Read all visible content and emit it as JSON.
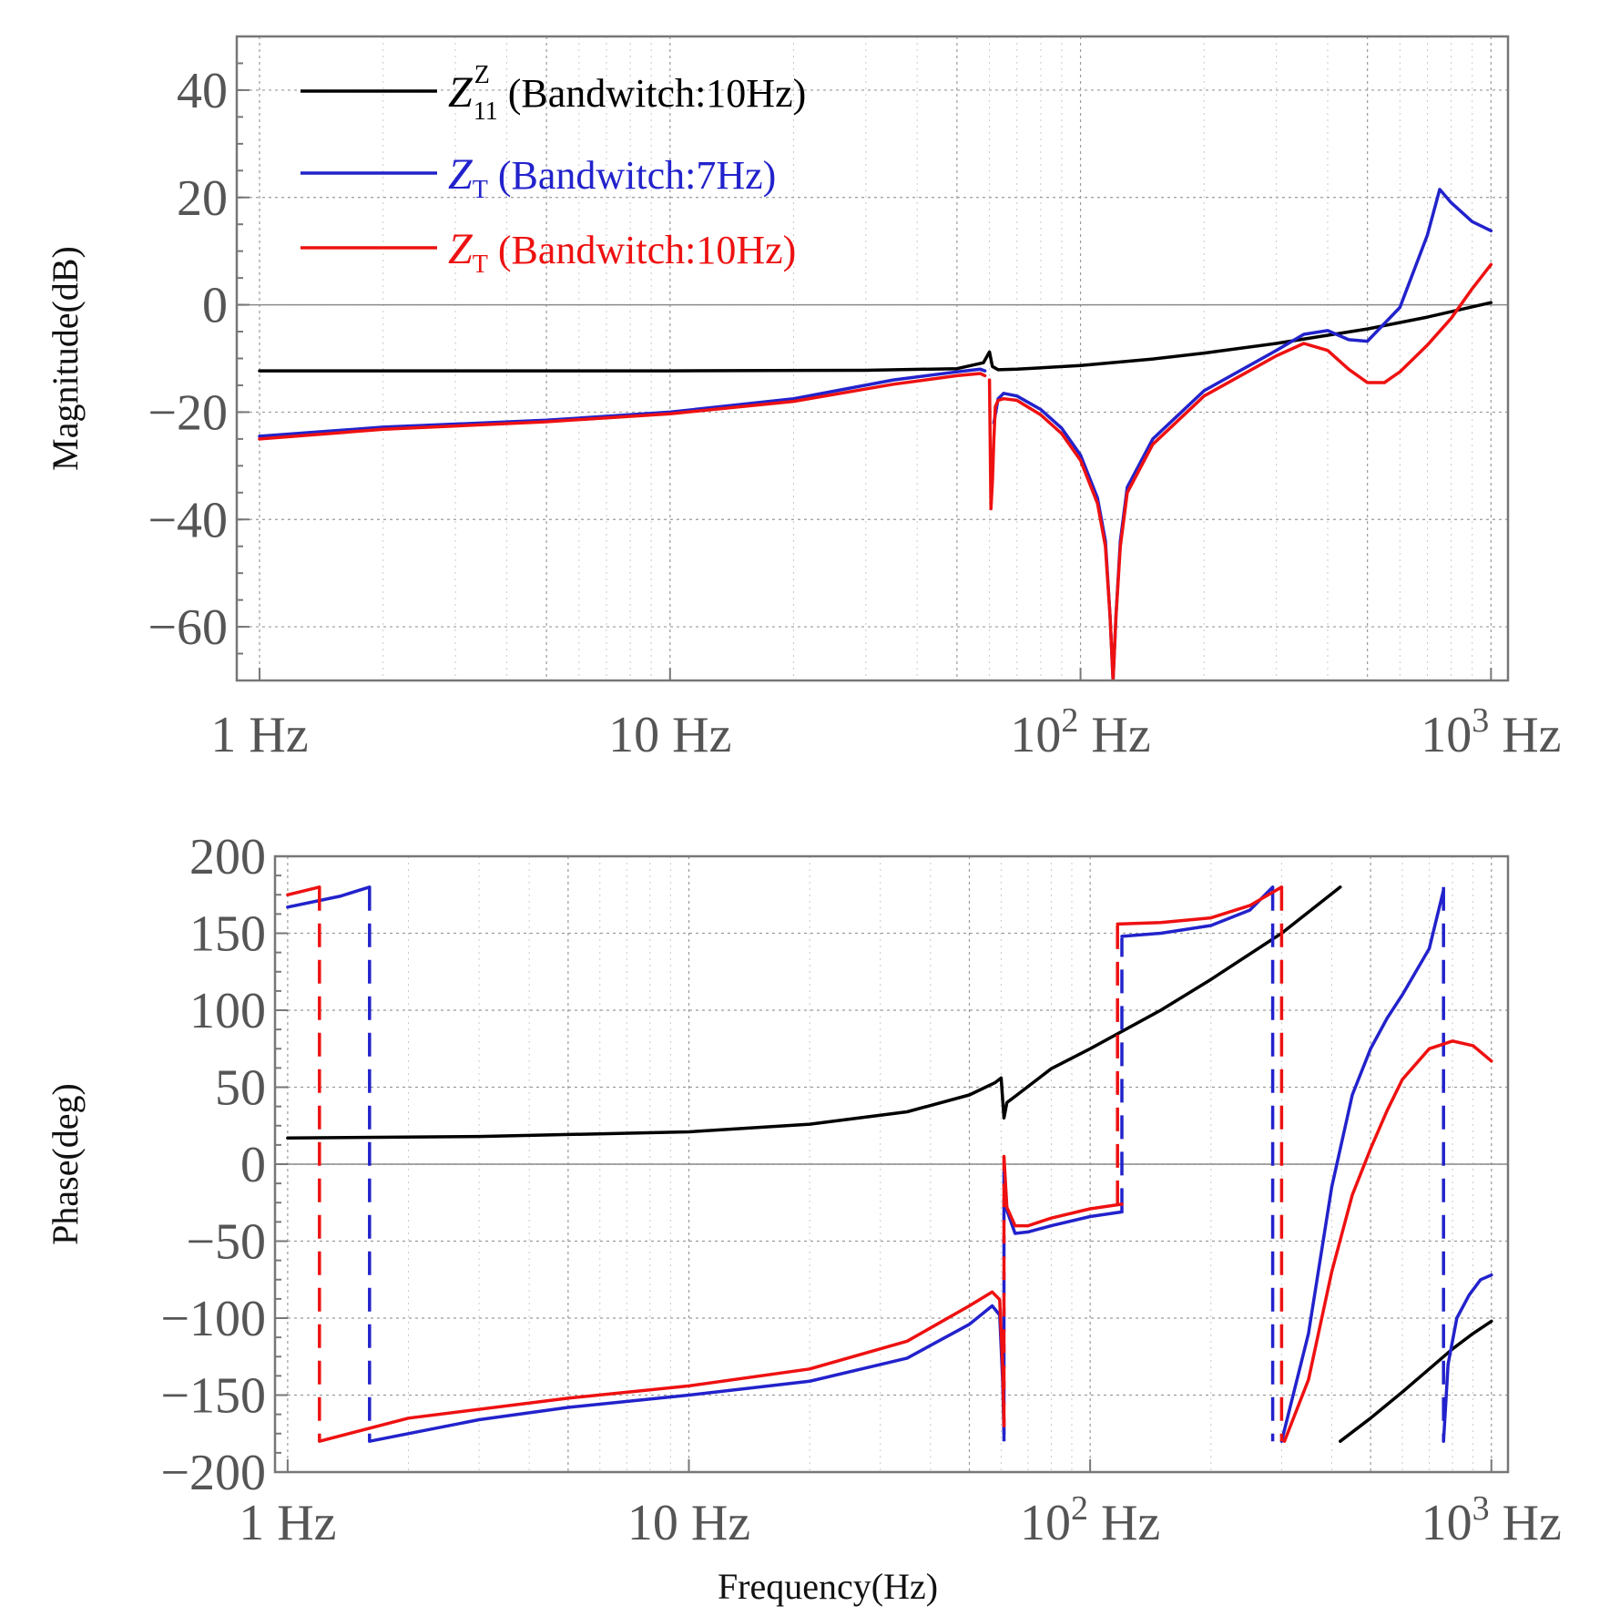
{
  "chart_data": [
    {
      "type": "line",
      "x_scale": "log",
      "xlim": [
        0.88,
        1100
      ],
      "ylim": [
        -70,
        50
      ],
      "ylabel": "Magnitude(dB)",
      "y_ticks": [
        40,
        20,
        0,
        -20,
        -40,
        -60
      ],
      "y_tick_labels": [
        "40",
        "20",
        "0",
        "−20",
        "−40",
        "−60"
      ],
      "x_tick_labels": [
        {
          "value": 1,
          "main": "1 Hz"
        },
        {
          "value": 10,
          "main": "10 Hz"
        },
        {
          "value": 100,
          "base": "10",
          "exp": "2",
          "unit": " Hz"
        },
        {
          "value": 1000,
          "base": "10",
          "exp": "3",
          "unit": " Hz"
        }
      ],
      "zero_line": 0,
      "legend": [
        {
          "color": "#000000",
          "symbol": "Z",
          "sub": "11",
          "sup": "Z",
          "text": " (Bandwitch:10Hz)"
        },
        {
          "color": "#2222cc",
          "symbol": "Z",
          "sub": "T",
          "sup": "",
          "text": " (Bandwitch:7Hz)"
        },
        {
          "color": "#ee1111",
          "symbol": "Z",
          "sub": "T",
          "sup": "",
          "text": " (Bandwitch:10Hz)"
        }
      ],
      "series": [
        {
          "name": "Z11Z (Bandwitch:10Hz)",
          "color": "#000000",
          "dashed": false,
          "x": [
            1,
            10,
            30,
            50,
            58,
            60,
            61,
            63,
            70,
            100,
            150,
            200,
            300,
            500,
            700,
            1000
          ],
          "y": [
            -12.3,
            -12.3,
            -12.2,
            -11.9,
            -10.8,
            -8.8,
            -11.5,
            -12.1,
            -12,
            -11.3,
            -10.1,
            -9,
            -7.2,
            -4.5,
            -2.3,
            0.4
          ]
        },
        {
          "name": "ZT (Bandwitch:7Hz)",
          "color": "#2222cc",
          "dashed": false,
          "x": [
            1,
            2,
            5,
            10,
            20,
            35,
            50,
            57,
            58.5
          ],
          "y": [
            -24.5,
            -22.8,
            -21.5,
            -20,
            -17.5,
            -14,
            -12.5,
            -12,
            -12.3
          ]
        },
        {
          "name": "ZT (Bandwitch:7Hz) b",
          "color": "#2222cc",
          "dashed": false,
          "x": [
            61.5,
            63,
            65,
            70,
            80,
            90,
            100,
            110,
            115,
            118,
            120,
            122,
            125,
            130,
            150,
            200,
            300,
            350,
            400,
            450,
            500,
            600,
            700,
            750,
            800,
            900,
            1000
          ],
          "y": [
            -22,
            -17.5,
            -16.5,
            -17,
            -19.5,
            -23,
            -28,
            -36,
            -44,
            -58,
            -70,
            -58,
            -44,
            -34,
            -25,
            -16,
            -8.5,
            -5.5,
            -4.8,
            -6.5,
            -6.8,
            -0.5,
            13,
            21.5,
            19,
            15.5,
            13.8
          ]
        },
        {
          "name": "ZT (Bandwitch:10Hz)",
          "color": "#ee1111",
          "dashed": false,
          "x": [
            1,
            2,
            5,
            10,
            20,
            35,
            50,
            57,
            58.5
          ],
          "y": [
            -25,
            -23.2,
            -21.8,
            -20.3,
            -18,
            -14.8,
            -13.2,
            -12.8,
            -13.2
          ]
        },
        {
          "name": "ZT (Bandwitch:10Hz) b",
          "color": "#ee1111",
          "dashed": false,
          "x": [
            60,
            60.5,
            61,
            61.5,
            62,
            63,
            65,
            70,
            80,
            90,
            100,
            110,
            115,
            118,
            120,
            122,
            125,
            130,
            150,
            200,
            300,
            350,
            400,
            450,
            500,
            550,
            600,
            700,
            800,
            900,
            1000
          ],
          "y": [
            -14,
            -38,
            -33,
            -25,
            -19,
            -17.8,
            -17.5,
            -17.8,
            -20.5,
            -24,
            -29,
            -37,
            -45,
            -58,
            -70,
            -58,
            -45,
            -35,
            -26,
            -17,
            -9.5,
            -7.2,
            -8.5,
            -12,
            -14.5,
            -14.5,
            -12.5,
            -7.5,
            -2.5,
            3,
            7.5
          ]
        }
      ]
    },
    {
      "type": "line",
      "x_scale": "log",
      "xlim": [
        0.93,
        1100
      ],
      "ylim": [
        -200,
        200
      ],
      "xlabel": "Frequency(Hz)",
      "ylabel": "Phase(deg)",
      "y_ticks": [
        200,
        150,
        100,
        50,
        0,
        -50,
        -100,
        -150,
        -200
      ],
      "y_tick_labels": [
        "200",
        "150",
        "100",
        "50",
        "0",
        "−50",
        "−100",
        "−150",
        "−200"
      ],
      "x_tick_labels": [
        {
          "value": 1,
          "main": "1 Hz"
        },
        {
          "value": 10,
          "main": "10 Hz"
        },
        {
          "value": 100,
          "base": "10",
          "exp": "2",
          "unit": " Hz"
        },
        {
          "value": 1000,
          "base": "10",
          "exp": "3",
          "unit": " Hz"
        }
      ],
      "zero_line": 0,
      "series": [
        {
          "name": "Z11Z phase",
          "color": "#000000",
          "dashed": false,
          "x": [
            1,
            3,
            10,
            20,
            35,
            50,
            58,
            60,
            61,
            62,
            65,
            80,
            100,
            150,
            200,
            300,
            420
          ],
          "y": [
            17,
            18,
            21,
            26,
            34,
            45,
            53,
            56,
            30,
            40,
            44,
            62,
            75,
            100,
            120,
            150,
            180
          ]
        },
        {
          "name": "Z11Z phase b",
          "color": "#000000",
          "dashed": false,
          "x": [
            420,
            500,
            600,
            700,
            800,
            900,
            1000
          ],
          "y": [
            -180,
            -165,
            -148,
            -133,
            -120,
            -110,
            -102
          ]
        },
        {
          "name": "ZT 7Hz phase a",
          "color": "#2222cc",
          "dashed": false,
          "x": [
            1,
            1.35,
            1.6
          ],
          "y": [
            167,
            174,
            180
          ]
        },
        {
          "name": "ZT 7Hz wrap 1",
          "color": "#2222cc",
          "dashed": true,
          "x": [
            1.6,
            1.6
          ],
          "y": [
            180,
            -180
          ]
        },
        {
          "name": "ZT 7Hz phase b",
          "color": "#2222cc",
          "dashed": false,
          "x": [
            1.6,
            3,
            5,
            10,
            20,
            35,
            50,
            57,
            59.5,
            60.5,
            61
          ],
          "y": [
            -180,
            -166,
            -158,
            -150,
            -141,
            -126,
            -104,
            -92,
            -98,
            -140,
            -175
          ]
        },
        {
          "name": "ZT 7Hz wrap 2",
          "color": "#2222cc",
          "dashed": true,
          "x": [
            61,
            61
          ],
          "y": [
            -180,
            -5
          ]
        },
        {
          "name": "ZT 7Hz phase c",
          "color": "#2222cc",
          "dashed": false,
          "x": [
            61,
            62,
            65,
            70,
            80,
            100,
            120
          ],
          "y": [
            -5,
            -30,
            -45,
            -44,
            -40,
            -34,
            -31
          ]
        },
        {
          "name": "ZT 7Hz wrap 3",
          "color": "#2222cc",
          "dashed": true,
          "x": [
            120,
            120
          ],
          "y": [
            -31,
            147
          ]
        },
        {
          "name": "ZT 7Hz phase d",
          "color": "#2222cc",
          "dashed": false,
          "x": [
            120,
            150,
            200,
            250,
            285
          ],
          "y": [
            148,
            150,
            155,
            165,
            180
          ]
        },
        {
          "name": "ZT 7Hz wrap 4",
          "color": "#2222cc",
          "dashed": true,
          "x": [
            285,
            285
          ],
          "y": [
            180,
            -180
          ]
        },
        {
          "name": "ZT 7Hz phase e",
          "color": "#2222cc",
          "dashed": false,
          "x": [
            300,
            350,
            400,
            450,
            500,
            550,
            600,
            700,
            760
          ],
          "y": [
            -180,
            -110,
            -15,
            45,
            75,
            95,
            110,
            140,
            178
          ]
        },
        {
          "name": "ZT 7Hz wrap 5",
          "color": "#2222cc",
          "dashed": true,
          "x": [
            760,
            760
          ],
          "y": [
            180,
            -180
          ]
        },
        {
          "name": "ZT 7Hz phase f",
          "color": "#2222cc",
          "dashed": false,
          "x": [
            760,
            780,
            820,
            880,
            940,
            1000
          ],
          "y": [
            -180,
            -130,
            -100,
            -85,
            -75,
            -72
          ]
        },
        {
          "name": "ZT 10Hz phase a",
          "color": "#ee1111",
          "dashed": false,
          "x": [
            1,
            1.2
          ],
          "y": [
            175,
            180
          ]
        },
        {
          "name": "ZT 10Hz wrap 1",
          "color": "#ee1111",
          "dashed": true,
          "x": [
            1.2,
            1.2
          ],
          "y": [
            180,
            -180
          ]
        },
        {
          "name": "ZT 10Hz phase b",
          "color": "#ee1111",
          "dashed": false,
          "x": [
            1.2,
            2,
            5,
            10,
            20,
            35,
            50,
            57,
            59.5,
            60.5,
            61
          ],
          "y": [
            -180,
            -165,
            -152,
            -144,
            -133,
            -115,
            -92,
            -83,
            -88,
            -130,
            -170
          ]
        },
        {
          "name": "ZT 10Hz wrap 2",
          "color": "#ee1111",
          "dashed": true,
          "x": [
            61,
            61
          ],
          "y": [
            -170,
            5
          ]
        },
        {
          "name": "ZT 10Hz phase c",
          "color": "#ee1111",
          "dashed": false,
          "x": [
            61,
            62,
            65,
            70,
            80,
            100,
            120
          ],
          "y": [
            5,
            -28,
            -40,
            -40,
            -35,
            -29,
            -26
          ]
        },
        {
          "name": "ZT 10Hz wrap 3",
          "color": "#ee1111",
          "dashed": true,
          "x": [
            117,
            117
          ],
          "y": [
            -26,
            157
          ]
        },
        {
          "name": "ZT 10Hz phase d",
          "color": "#ee1111",
          "dashed": false,
          "x": [
            117,
            150,
            200,
            250,
            300
          ],
          "y": [
            156,
            157,
            160,
            168,
            180
          ]
        },
        {
          "name": "ZT 10Hz wrap 4",
          "color": "#ee1111",
          "dashed": true,
          "x": [
            300,
            300
          ],
          "y": [
            180,
            -180
          ]
        },
        {
          "name": "ZT 10Hz phase e",
          "color": "#ee1111",
          "dashed": false,
          "x": [
            305,
            350,
            400,
            450,
            500,
            550,
            600,
            700,
            800,
            900,
            1000
          ],
          "y": [
            -180,
            -140,
            -70,
            -20,
            10,
            35,
            55,
            75,
            80,
            77,
            67
          ]
        }
      ]
    }
  ]
}
